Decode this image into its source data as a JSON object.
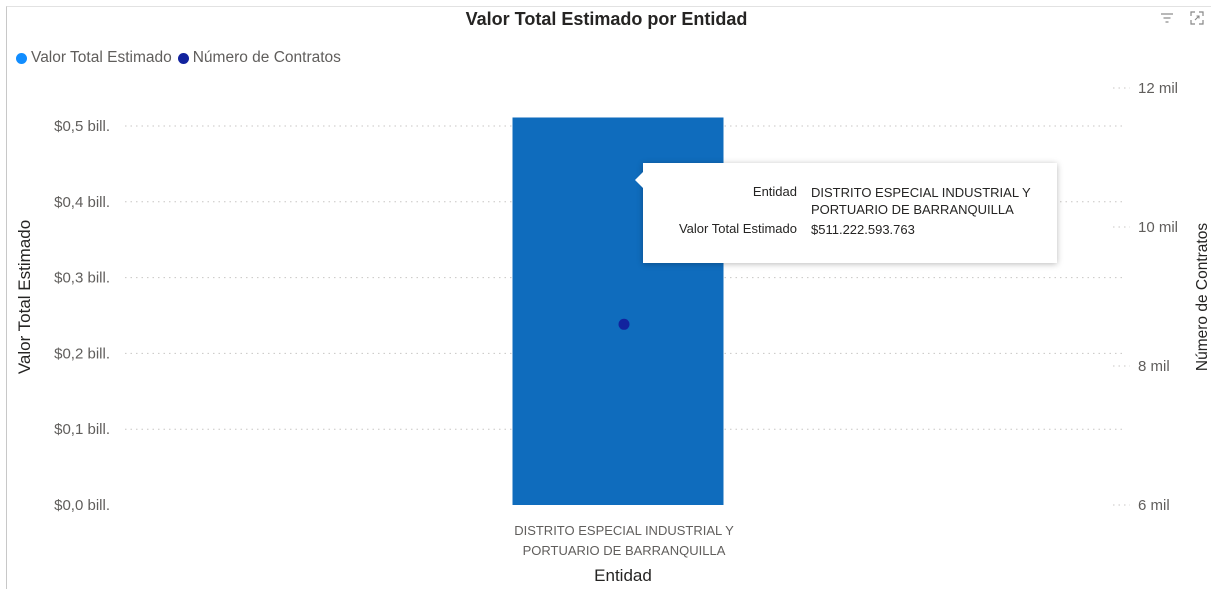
{
  "header": {
    "title": "Valor Total Estimado por Entidad",
    "filter_icon": "filter-icon",
    "focus_icon": "focus-mode-icon"
  },
  "legend": {
    "items": [
      {
        "label": "Valor Total Estimado",
        "color": "#118dff"
      },
      {
        "label": "Número de Contratos",
        "color": "#12239e"
      }
    ]
  },
  "chart_data": {
    "type": "bar",
    "title": "Valor Total Estimado por Entidad",
    "xlabel": "Entidad",
    "ylabel": "Valor Total Estimado",
    "y2label": "Número de Contratos",
    "categories": [
      "DISTRITO ESPECIAL INDUSTRIAL Y PORTUARIO DE BARRANQUILLA"
    ],
    "category_lines": [
      [
        "DISTRITO ESPECIAL INDUSTRIAL Y",
        "PORTUARIO DE BARRANQUILLA"
      ]
    ],
    "series": [
      {
        "name": "Valor Total Estimado",
        "type": "bar",
        "axis": "left",
        "values": [
          511222593763
        ],
        "color": "#0f6cbd"
      },
      {
        "name": "Número de Contratos",
        "type": "scatter",
        "axis": "right",
        "values": [
          8600
        ],
        "color": "#12239e"
      }
    ],
    "ylim": [
      0,
      550000000000
    ],
    "y_ticks": [
      {
        "value": 0,
        "label": "$0,0 bill."
      },
      {
        "value": 100000000000,
        "label": "$0,1 bill."
      },
      {
        "value": 200000000000,
        "label": "$0,2 bill."
      },
      {
        "value": 300000000000,
        "label": "$0,3 bill."
      },
      {
        "value": 400000000000,
        "label": "$0,4 bill."
      },
      {
        "value": 500000000000,
        "label": "$0,5 bill."
      }
    ],
    "y2lim": [
      6000,
      12000
    ],
    "y2_ticks": [
      {
        "value": 6000,
        "label": "6 mil"
      },
      {
        "value": 8000,
        "label": "8 mil"
      },
      {
        "value": 10000,
        "label": "10 mil"
      },
      {
        "value": 12000,
        "label": "12 mil"
      }
    ],
    "grid": true,
    "legend_position": "top-left"
  },
  "tooltip": {
    "rows": [
      {
        "label": "Entidad",
        "value": "DISTRITO ESPECIAL INDUSTRIAL Y PORTUARIO DE BARRANQUILLA"
      },
      {
        "label": "Valor Total Estimado",
        "value": "$511.222.593.763"
      }
    ]
  }
}
